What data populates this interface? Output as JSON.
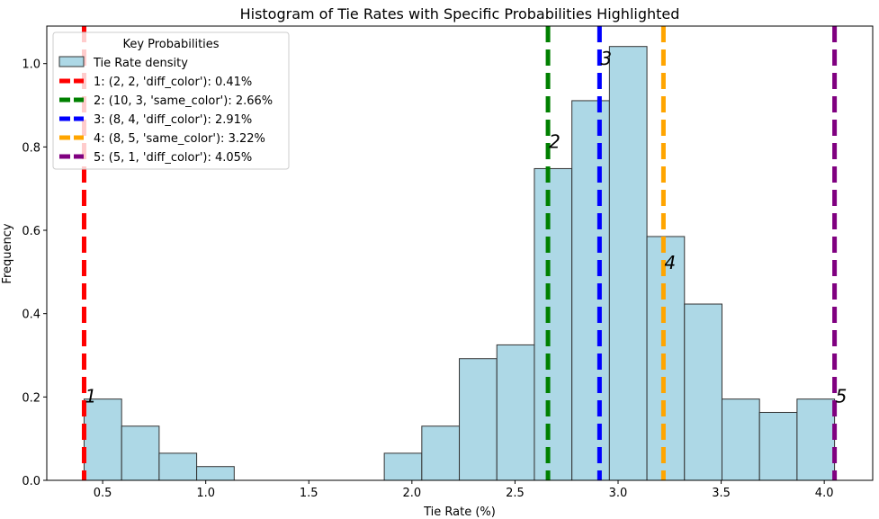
{
  "chart_data": {
    "type": "bar",
    "title": "Histogram of Tie Rates with Specific Probabilities Highlighted",
    "xlabel": "Tie Rate (%)",
    "ylabel": "Frequency",
    "xlim": [
      0.229,
      4.235
    ],
    "ylim": [
      0,
      1.09
    ],
    "xticks": [
      0.5,
      1.0,
      1.5,
      2.0,
      2.5,
      3.0,
      3.5,
      4.0
    ],
    "xtick_labels": [
      "0.5",
      "1.0",
      "1.5",
      "2.0",
      "2.5",
      "3.0",
      "3.5",
      "4.0"
    ],
    "yticks": [
      0.0,
      0.2,
      0.4,
      0.6,
      0.8,
      1.0
    ],
    "ytick_labels": [
      "0.0",
      "0.2",
      "0.4",
      "0.6",
      "0.8",
      "1.0"
    ],
    "grid": false,
    "bar_color": "#add8e6",
    "bar_edge_color": "#333333",
    "bin_edges": [
      0.41,
      0.592,
      0.774,
      0.956,
      1.138,
      1.32,
      1.502,
      1.684,
      1.866,
      2.048,
      2.23,
      2.412,
      2.594,
      2.776,
      2.958,
      3.14,
      3.322,
      3.504,
      3.686,
      3.868,
      4.05
    ],
    "values": [
      0.195,
      0.13,
      0.065,
      0.033,
      0,
      0,
      0,
      0,
      0.065,
      0.13,
      0.292,
      0.325,
      0.748,
      0.911,
      1.041,
      0.585,
      0.423,
      0.195,
      0.163,
      0.195
    ],
    "bar_series_label": "Tie Rate density",
    "vlines": [
      {
        "x": 0.41,
        "color": "#ff0000",
        "label": "1: (2, 2, 'diff_color'): 0.41%",
        "annotation": "1",
        "annotation_y": 0.2
      },
      {
        "x": 2.66,
        "color": "#008000",
        "label": "2: (10, 3, 'same_color'): 2.66%",
        "annotation": "2",
        "annotation_y": 0.81
      },
      {
        "x": 2.91,
        "color": "#0000ff",
        "label": "3: (8, 4, 'diff_color'): 2.91%",
        "annotation": "3",
        "annotation_y": 1.01
      },
      {
        "x": 3.22,
        "color": "#ffa500",
        "label": "4: (8, 5, 'same_color'): 3.22%",
        "annotation": "4",
        "annotation_y": 0.52
      },
      {
        "x": 4.05,
        "color": "#800080",
        "label": "5: (5, 1, 'diff_color'): 4.05%",
        "annotation": "5",
        "annotation_y": 0.2
      }
    ],
    "legend": {
      "title": "Key Probabilities",
      "placement": "top-left"
    }
  }
}
